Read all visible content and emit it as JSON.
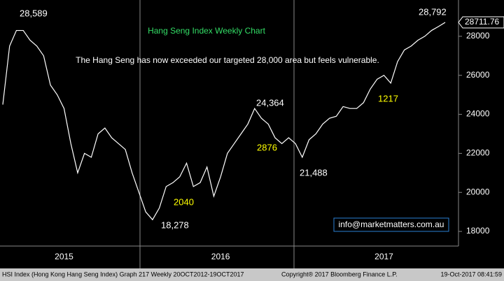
{
  "chart_data": {
    "type": "line",
    "title": "Hang Seng Index Weekly Chart",
    "subtitle": "The Hang Seng has now exceeded our targeted 28,000 area but feels vulnerable.",
    "categories": [
      null,
      null,
      null,
      null,
      null,
      null,
      null,
      null,
      null,
      "2015",
      null,
      null,
      null,
      null,
      null,
      null,
      null,
      null,
      null,
      null,
      null,
      null,
      null,
      null,
      null,
      null,
      null,
      null,
      null,
      null,
      null,
      null,
      "2016",
      null,
      null,
      null,
      null,
      null,
      null,
      null,
      null,
      null,
      null,
      null,
      null,
      null,
      null,
      null,
      null,
      null,
      null,
      null,
      null,
      null,
      null,
      null,
      "2017",
      null,
      null,
      null,
      null,
      null,
      null,
      null,
      null,
      null
    ],
    "series": [
      {
        "name": "HSI Index",
        "color": "#ffffff",
        "values": [
          24500,
          27500,
          28300,
          28300,
          27800,
          27500,
          27000,
          25500,
          25000,
          24300,
          22500,
          21000,
          22000,
          21800,
          23000,
          23300,
          22800,
          22500,
          22200,
          21000,
          20000,
          19000,
          18600,
          19200,
          20300,
          20500,
          20800,
          21500,
          20300,
          20500,
          21300,
          19800,
          20800,
          22000,
          22500,
          23000,
          23500,
          24300,
          23800,
          23500,
          22800,
          22500,
          22800,
          22500,
          21800,
          22700,
          23000,
          23500,
          23800,
          23900,
          24400,
          24300,
          24300,
          24600,
          25300,
          25800,
          26000,
          25600,
          26700,
          27300,
          27500,
          27800,
          28000,
          28300,
          28500,
          28711.76
        ]
      }
    ],
    "ylim": [
      17250,
      29860
    ],
    "yticks": [
      18000,
      20000,
      22000,
      24000,
      26000,
      28000
    ],
    "last_label": "28711.76",
    "annotations": {
      "high1": "28,589",
      "low1": "18,278",
      "high2": "24,364",
      "low2": "21,488",
      "high3": "28,792",
      "move1": "2040",
      "move2": "2876",
      "move3": "1217"
    },
    "email": "info@marketmatters.com.au",
    "footer": {
      "left": "HSI Index (Hong Kong Hang Seng Index) Graph 217  Weekly 20OCT2012-19OCT2017",
      "center": "Copyright® 2017 Bloomberg Finance L.P.",
      "right": "19-Oct-2017 08:41:59"
    }
  }
}
